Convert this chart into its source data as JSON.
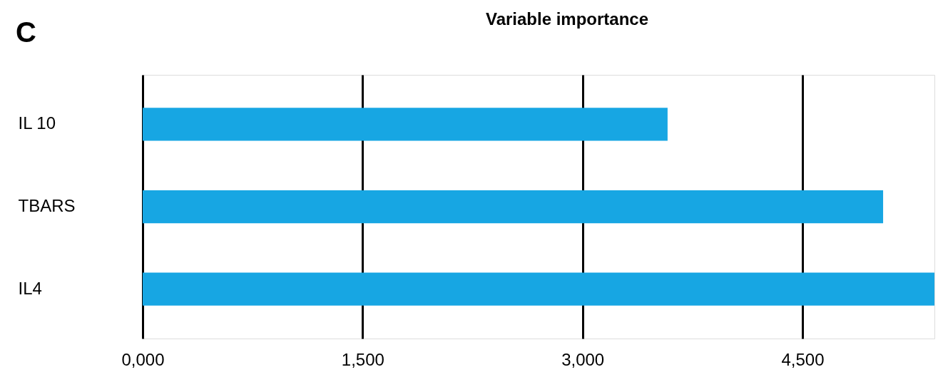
{
  "chart_data": {
    "type": "bar",
    "orientation": "horizontal",
    "title": "Variable importance",
    "annotations": [
      "C"
    ],
    "categories": [
      "IL 10",
      "TBARS",
      "IL4"
    ],
    "values": [
      3580,
      5050,
      5400
    ],
    "color": "#17a6e3",
    "xlim": [
      0,
      5400
    ],
    "xticks": [
      {
        "value": 0,
        "label": "0,000"
      },
      {
        "value": 1500,
        "label": "1,500"
      },
      {
        "value": 3000,
        "label": "3,000"
      },
      {
        "value": 4500,
        "label": "4,500"
      }
    ],
    "grid": "x"
  }
}
